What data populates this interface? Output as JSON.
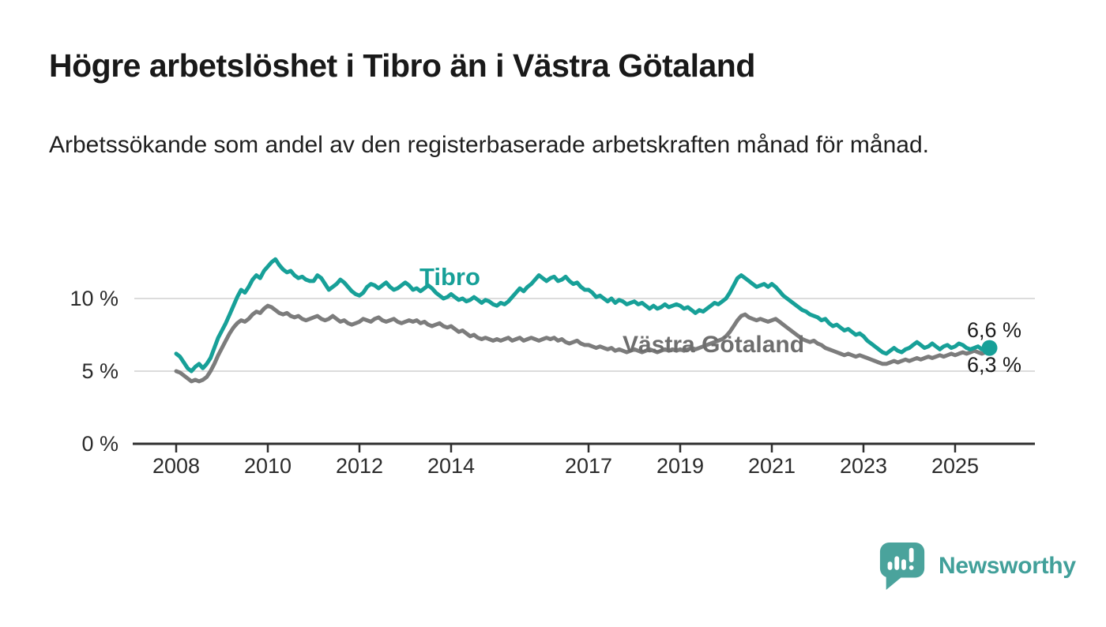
{
  "header": {
    "title": "Högre arbetslöshet i Tibro än i Västra Götaland",
    "subtitle": "Arbetssökande som andel av den registerbaserade arbetskraften månad för månad."
  },
  "chart_data": {
    "type": "line",
    "title": "Högre arbetslöshet i Tibro än i Västra Götaland",
    "xlabel": "",
    "ylabel": "Arbetssökande som andel av den registerbaserade arbetskraften",
    "unit": "%",
    "x_start_year": 2008,
    "x_step": "month",
    "x_end_label_period": "2025",
    "ylim": [
      0,
      14
    ],
    "grid": "horizontal",
    "grid_color": "#dcdcdc",
    "axis_color": "#2e2e2e",
    "y_ticks": [
      {
        "value": 10,
        "label": "10 %"
      },
      {
        "value": 5,
        "label": "5 %"
      },
      {
        "value": 0,
        "label": "0 %"
      }
    ],
    "x_ticks": [
      {
        "year": 2008,
        "label": "2008"
      },
      {
        "year": 2010,
        "label": "2010"
      },
      {
        "year": 2012,
        "label": "2012"
      },
      {
        "year": 2014,
        "label": "2014"
      },
      {
        "year": 2017,
        "label": "2017"
      },
      {
        "year": 2019,
        "label": "2019"
      },
      {
        "year": 2021,
        "label": "2021"
      },
      {
        "year": 2023,
        "label": "2023"
      },
      {
        "year": 2025,
        "label": "2025"
      }
    ],
    "series": [
      {
        "id": "vastra-gotaland",
        "name": "Västra Götaland",
        "color": "#7c7c7c",
        "label_color": "#6e6e6e",
        "end_label": "6,3 %",
        "end_dot": false,
        "values": [
          5.0,
          4.9,
          4.7,
          4.5,
          4.3,
          4.4,
          4.3,
          4.4,
          4.6,
          5.0,
          5.5,
          6.1,
          6.6,
          7.1,
          7.6,
          8.0,
          8.3,
          8.5,
          8.4,
          8.6,
          8.9,
          9.1,
          9.0,
          9.3,
          9.5,
          9.4,
          9.2,
          9.0,
          8.9,
          9.0,
          8.8,
          8.7,
          8.8,
          8.6,
          8.5,
          8.6,
          8.7,
          8.8,
          8.6,
          8.5,
          8.6,
          8.8,
          8.6,
          8.4,
          8.5,
          8.3,
          8.2,
          8.3,
          8.4,
          8.6,
          8.5,
          8.4,
          8.6,
          8.7,
          8.5,
          8.4,
          8.5,
          8.6,
          8.4,
          8.3,
          8.4,
          8.5,
          8.4,
          8.5,
          8.3,
          8.4,
          8.2,
          8.1,
          8.2,
          8.3,
          8.1,
          8.0,
          8.1,
          7.9,
          7.7,
          7.8,
          7.6,
          7.4,
          7.5,
          7.3,
          7.2,
          7.3,
          7.2,
          7.1,
          7.2,
          7.1,
          7.2,
          7.3,
          7.1,
          7.2,
          7.3,
          7.1,
          7.2,
          7.3,
          7.2,
          7.1,
          7.2,
          7.3,
          7.2,
          7.3,
          7.1,
          7.2,
          7.0,
          6.9,
          7.0,
          7.1,
          6.9,
          6.8,
          6.8,
          6.7,
          6.6,
          6.7,
          6.6,
          6.5,
          6.6,
          6.4,
          6.5,
          6.4,
          6.3,
          6.4,
          6.5,
          6.4,
          6.3,
          6.4,
          6.5,
          6.4,
          6.3,
          6.4,
          6.5,
          6.4,
          6.5,
          6.4,
          6.5,
          6.4,
          6.5,
          6.6,
          6.5,
          6.6,
          6.7,
          6.8,
          6.9,
          7.0,
          7.1,
          7.2,
          7.4,
          7.7,
          8.1,
          8.5,
          8.8,
          8.9,
          8.7,
          8.6,
          8.5,
          8.6,
          8.5,
          8.4,
          8.5,
          8.6,
          8.4,
          8.2,
          8.0,
          7.8,
          7.6,
          7.4,
          7.2,
          7.1,
          7.0,
          7.1,
          6.9,
          6.8,
          6.6,
          6.5,
          6.4,
          6.3,
          6.2,
          6.1,
          6.2,
          6.1,
          6.0,
          6.1,
          6.0,
          5.9,
          5.8,
          5.7,
          5.6,
          5.5,
          5.5,
          5.6,
          5.7,
          5.6,
          5.7,
          5.8,
          5.7,
          5.8,
          5.9,
          5.8,
          5.9,
          6.0,
          5.9,
          6.0,
          6.1,
          6.0,
          6.1,
          6.2,
          6.1,
          6.2,
          6.3,
          6.2,
          6.3,
          6.4,
          6.3,
          6.2,
          6.3,
          6.3
        ]
      },
      {
        "id": "tibro",
        "name": "Tibro",
        "color": "#17a098",
        "label_color": "#17a098",
        "end_label": "6,6 %",
        "end_dot": true,
        "values": [
          6.2,
          6.0,
          5.6,
          5.2,
          5.0,
          5.3,
          5.5,
          5.2,
          5.5,
          5.9,
          6.6,
          7.3,
          7.8,
          8.3,
          8.9,
          9.5,
          10.1,
          10.6,
          10.4,
          10.8,
          11.3,
          11.6,
          11.4,
          11.9,
          12.2,
          12.5,
          12.7,
          12.3,
          12.0,
          11.8,
          11.9,
          11.6,
          11.4,
          11.5,
          11.3,
          11.2,
          11.2,
          11.6,
          11.4,
          11.0,
          10.6,
          10.8,
          11.0,
          11.3,
          11.1,
          10.8,
          10.5,
          10.3,
          10.2,
          10.4,
          10.8,
          11.0,
          10.9,
          10.7,
          10.9,
          11.1,
          10.8,
          10.6,
          10.7,
          10.9,
          11.1,
          10.9,
          10.6,
          10.7,
          10.5,
          10.7,
          10.9,
          10.7,
          10.4,
          10.2,
          10.0,
          10.1,
          10.3,
          10.1,
          9.9,
          10.0,
          9.8,
          9.9,
          10.1,
          9.9,
          9.7,
          9.9,
          9.8,
          9.6,
          9.5,
          9.7,
          9.6,
          9.8,
          10.1,
          10.4,
          10.7,
          10.5,
          10.8,
          11.0,
          11.3,
          11.6,
          11.4,
          11.2,
          11.4,
          11.5,
          11.2,
          11.3,
          11.5,
          11.2,
          11.0,
          11.1,
          10.8,
          10.6,
          10.6,
          10.4,
          10.1,
          10.2,
          10.0,
          9.8,
          10.0,
          9.7,
          9.9,
          9.8,
          9.6,
          9.7,
          9.8,
          9.6,
          9.7,
          9.5,
          9.3,
          9.5,
          9.3,
          9.4,
          9.6,
          9.4,
          9.5,
          9.6,
          9.5,
          9.3,
          9.4,
          9.2,
          9.0,
          9.2,
          9.1,
          9.3,
          9.5,
          9.7,
          9.6,
          9.8,
          10.0,
          10.4,
          10.9,
          11.4,
          11.6,
          11.4,
          11.2,
          11.0,
          10.8,
          10.9,
          11.0,
          10.8,
          11.0,
          10.8,
          10.5,
          10.2,
          10.0,
          9.8,
          9.6,
          9.4,
          9.2,
          9.1,
          8.9,
          8.8,
          8.7,
          8.5,
          8.6,
          8.3,
          8.1,
          8.2,
          8.0,
          7.8,
          7.9,
          7.7,
          7.5,
          7.6,
          7.4,
          7.1,
          6.9,
          6.7,
          6.5,
          6.3,
          6.2,
          6.4,
          6.6,
          6.4,
          6.3,
          6.5,
          6.6,
          6.8,
          7.0,
          6.8,
          6.6,
          6.7,
          6.9,
          6.7,
          6.5,
          6.7,
          6.8,
          6.6,
          6.7,
          6.9,
          6.8,
          6.6,
          6.5,
          6.6,
          6.7,
          6.5,
          6.6,
          6.6
        ]
      }
    ]
  },
  "footer": {
    "brand": "Newsworthy",
    "brand_color": "#42a09a",
    "logo_color": "#4aa39c",
    "logo_icon": "bar-chart-exclamation-bubble-icon"
  }
}
